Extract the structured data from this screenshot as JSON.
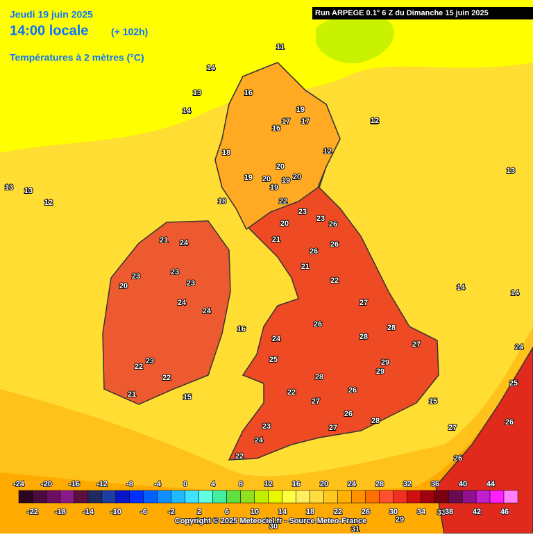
{
  "header": {
    "date": "Jeudi 19 juin 2025",
    "time": "14:00 locale",
    "lead": "(+ 102h)",
    "variable": "Températures à 2 mètres (°C)"
  },
  "run_info": "Run ARPEGE 0.1° 6 Z du Dimanche 15 juin 2025",
  "copyright": "Copyright © 2025 Meteociel.fr - Source Meteo-France",
  "colorbar": {
    "top_labels": [
      -24,
      -20,
      -16,
      -12,
      -8,
      -4,
      0,
      4,
      8,
      12,
      16,
      20,
      24,
      28,
      32,
      36,
      40,
      44
    ],
    "bottom_labels": [
      -22,
      -18,
      -14,
      -10,
      -6,
      -2,
      2,
      6,
      10,
      14,
      18,
      22,
      26,
      30,
      34,
      38,
      42,
      46
    ],
    "colors": [
      "#2b0620",
      "#4a0b3e",
      "#6a0f63",
      "#8a1a8a",
      "#5c1040",
      "#202a60",
      "#1c3ea0",
      "#0a14c8",
      "#0030ff",
      "#0060ff",
      "#1090ff",
      "#20b8ff",
      "#40e0ff",
      "#60ffe0",
      "#40f0a0",
      "#60e040",
      "#90e020",
      "#c0f000",
      "#e8f800",
      "#ffff40",
      "#ffee60",
      "#ffdd40",
      "#ffc820",
      "#ffb000",
      "#ff9000",
      "#ff7000",
      "#ff5030",
      "#f03020",
      "#d01010",
      "#a00010",
      "#780010",
      "#6a0a50",
      "#901090",
      "#c020d0",
      "#ff20ff",
      "#ff80ff"
    ]
  },
  "map_labels": [
    11,
    14,
    13,
    16,
    17,
    13,
    14,
    16,
    19,
    17,
    18,
    20,
    12,
    19,
    20,
    18,
    19,
    20,
    19,
    22,
    23,
    20,
    21,
    23,
    26,
    26,
    26,
    21,
    22,
    26,
    27,
    28,
    28,
    27,
    29,
    29,
    26,
    28,
    27,
    26,
    28,
    27,
    25,
    24,
    22,
    23,
    22,
    24,
    23,
    21,
    24,
    23,
    23,
    24,
    24,
    23,
    22,
    21,
    20,
    22,
    13,
    13,
    12,
    12,
    13,
    14,
    14,
    15,
    16,
    15,
    24,
    25,
    26,
    27,
    26,
    30,
    31,
    29,
    33
  ]
}
